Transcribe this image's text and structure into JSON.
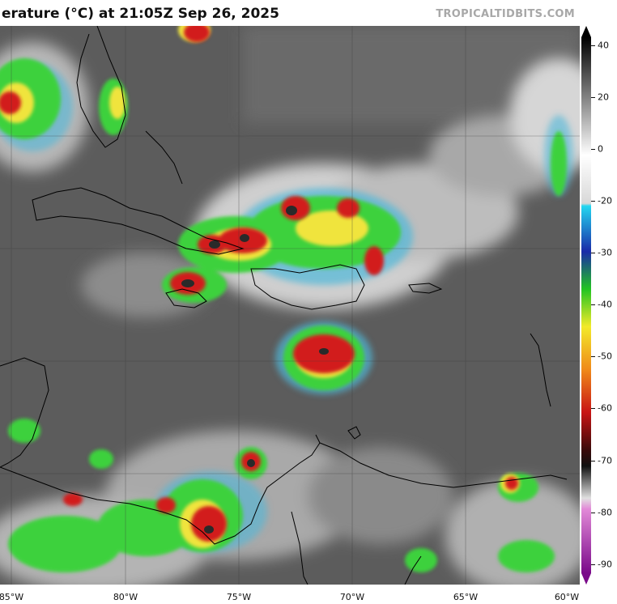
{
  "header": {
    "title": "erature (°C) at 21:05Z Sep 26, 2025",
    "credit": "TROPICALTIDBITS.COM"
  },
  "map": {
    "type": "infrared satellite brightness temperature",
    "x_axis_labels": [
      "85°W",
      "80°W",
      "75°W",
      "70°W",
      "65°W",
      "60°W"
    ],
    "gridlines": true
  },
  "colorbar": {
    "unit": "°C",
    "ticks": [
      "40",
      "20",
      "0",
      "-20",
      "-30",
      "-40",
      "-50",
      "-60",
      "-70",
      "-80",
      "-90"
    ],
    "range": [
      40,
      -90
    ]
  },
  "colors": {
    "background_cloudfree": "#5a5a5a",
    "cold_cloud_green": "#3cd13c",
    "deep_convection_red": "#c81414",
    "overshooting_top": "#1a1a1a",
    "coastline": "#000000"
  }
}
